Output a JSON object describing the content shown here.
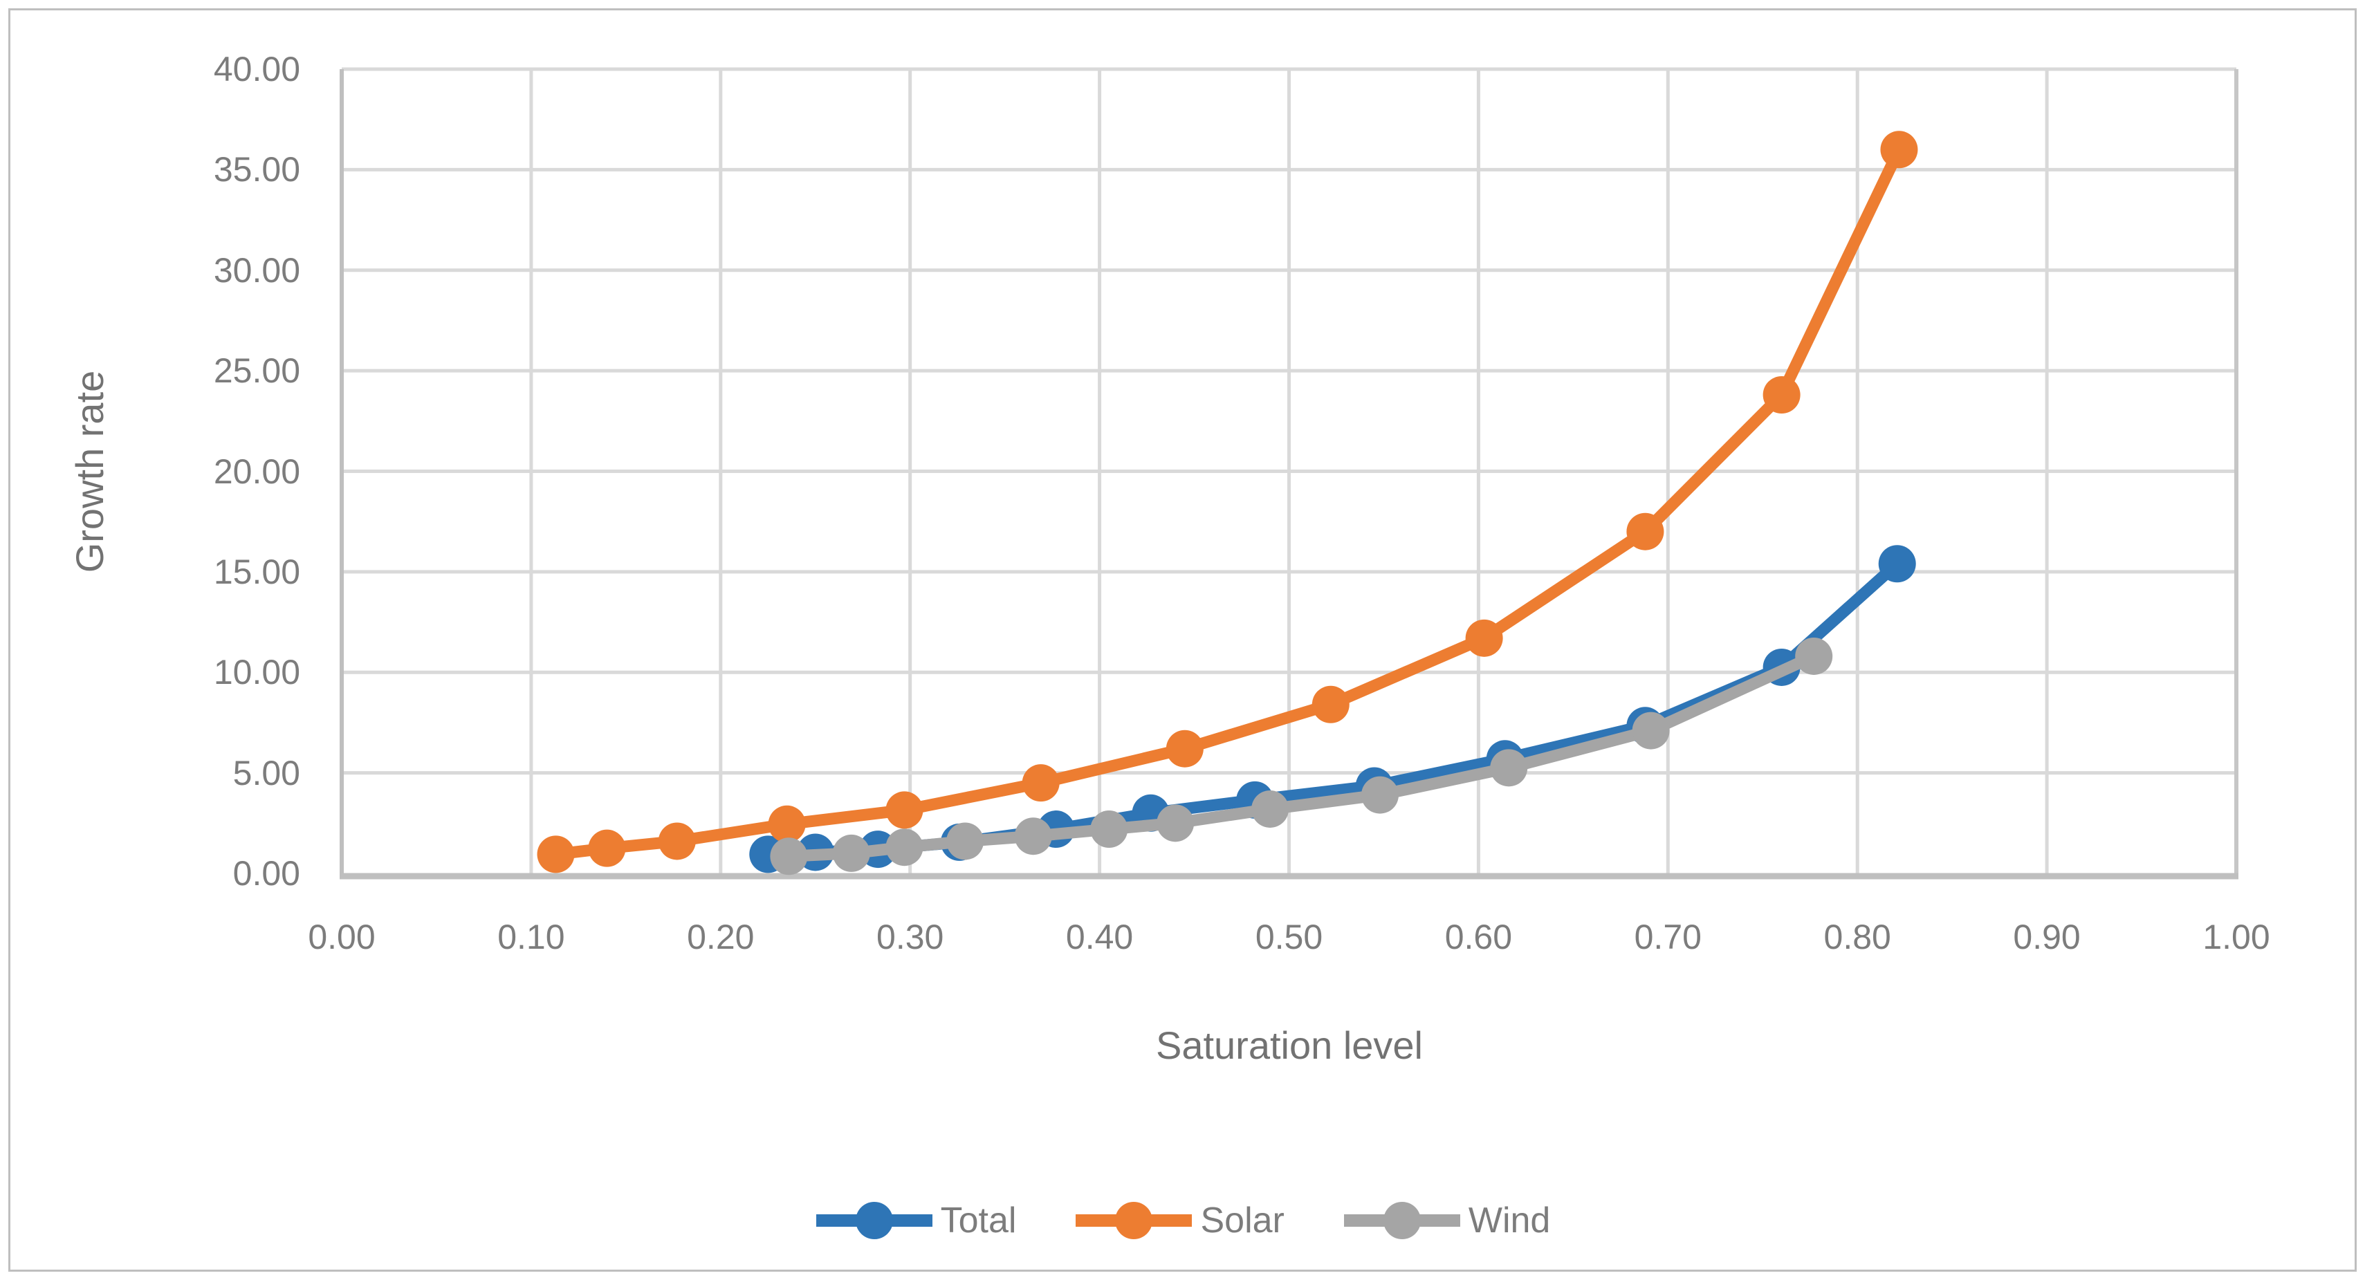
{
  "figure": {
    "background": "#FFFFFF",
    "border_color": "#BFBFBF"
  },
  "chart_data": {
    "type": "line",
    "title": "",
    "xlabel": "Saturation level",
    "ylabel": "Growth rate",
    "xlim": [
      0.0,
      1.0
    ],
    "ylim": [
      0.0,
      40.0
    ],
    "grid": "on",
    "x_tick_values": [
      0.0,
      0.1,
      0.2,
      0.3,
      0.4,
      0.5,
      0.6,
      0.7,
      0.8,
      0.9,
      1.0
    ],
    "x_tick_labels": [
      "0.00",
      "0.10",
      "0.20",
      "0.30",
      "0.40",
      "0.50",
      "0.60",
      "0.70",
      "0.80",
      "0.90",
      "1.00"
    ],
    "y_tick_values": [
      0,
      5,
      10,
      15,
      20,
      25,
      30,
      35,
      40
    ],
    "y_tick_labels": [
      "0.00",
      "5.00",
      "10.00",
      "15.00",
      "20.00",
      "25.00",
      "30.00",
      "35.00",
      "40.00"
    ],
    "series": [
      {
        "name": "Total",
        "color": "#2E75B6",
        "x": [
          0.225,
          0.25,
          0.283,
          0.326,
          0.377,
          0.427,
          0.482,
          0.545,
          0.614,
          0.688,
          0.76,
          0.821
        ],
        "y": [
          0.95,
          1.05,
          1.2,
          1.55,
          2.2,
          3.0,
          3.65,
          4.35,
          5.7,
          7.35,
          10.25,
          15.4
        ]
      },
      {
        "name": "Solar",
        "color": "#ED7D31",
        "x": [
          0.113,
          0.14,
          0.177,
          0.235,
          0.297,
          0.369,
          0.445,
          0.522,
          0.603,
          0.688,
          0.76,
          0.822
        ],
        "y": [
          0.95,
          1.25,
          1.6,
          2.45,
          3.15,
          4.5,
          6.2,
          8.4,
          11.7,
          17.0,
          23.8,
          36.0
        ]
      },
      {
        "name": "Wind",
        "color": "#A5A5A5",
        "x": [
          0.236,
          0.269,
          0.297,
          0.329,
          0.365,
          0.405,
          0.44,
          0.49,
          0.548,
          0.616,
          0.691,
          0.777
        ],
        "y": [
          0.85,
          1.0,
          1.3,
          1.6,
          1.85,
          2.2,
          2.5,
          3.2,
          3.9,
          5.25,
          7.1,
          10.8
        ]
      }
    ],
    "legend": {
      "position": "bottom-center",
      "entries": [
        "Total",
        "Solar",
        "Wind"
      ]
    },
    "style_colors": {
      "gridline": "#D9D9D9",
      "axis_line": "#BFBFBF",
      "plot_right_border": "#C6C6C6",
      "tick_text": "#7C7C7C",
      "axis_title_text": "#727272"
    }
  }
}
